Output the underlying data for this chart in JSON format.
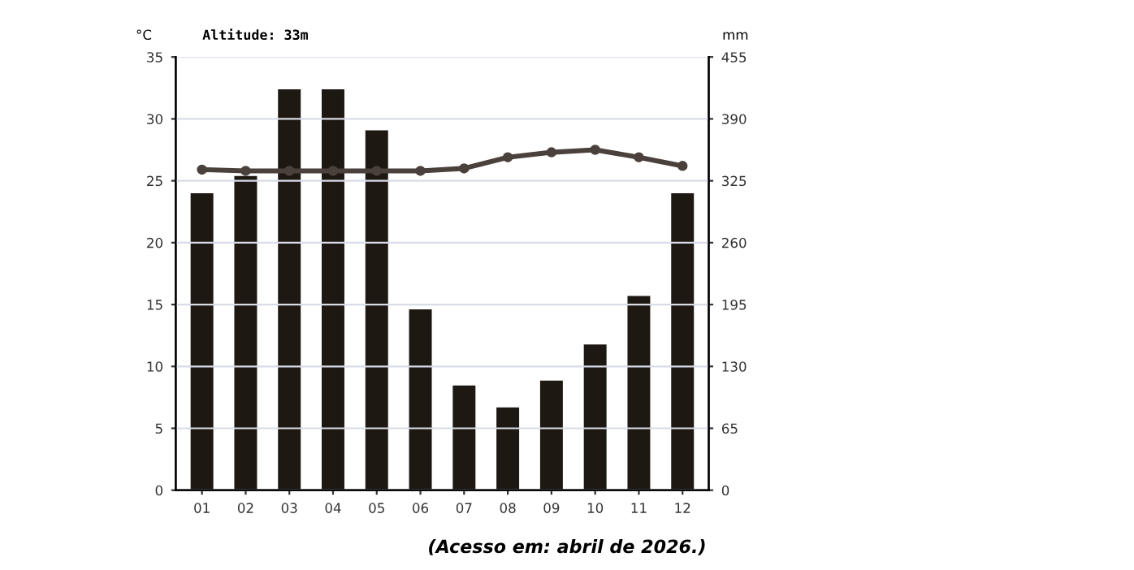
{
  "chart_data": {
    "type": "bar",
    "categories": [
      "01",
      "02",
      "03",
      "04",
      "05",
      "06",
      "07",
      "08",
      "09",
      "10",
      "11",
      "12"
    ],
    "series": [
      {
        "axis": "y2",
        "color": "#1e1812",
        "values": [
          312,
          330,
          421,
          421,
          378,
          190,
          110,
          87,
          115,
          153,
          204,
          312
        ]
      },
      {
        "type": "line",
        "axis": "y",
        "color": "#4a413c",
        "marker": "circle",
        "line_style": "solid",
        "values": [
          25.9,
          25.8,
          25.8,
          25.8,
          25.8,
          25.8,
          26.0,
          26.9,
          27.3,
          27.5,
          26.9,
          26.2
        ]
      }
    ],
    "ylabel": "°C",
    "y2label": "mm",
    "ylim": [
      0,
      35
    ],
    "yticks": [
      0,
      5,
      10,
      15,
      20,
      25,
      30,
      35
    ],
    "y2lim": [
      0,
      455
    ],
    "y2ticks": [
      0,
      65,
      130,
      195,
      260,
      325,
      390,
      455
    ],
    "grid": "y",
    "legend": false,
    "annotations": [
      "Altitude: 33m",
      "(Acesso em: abril de 2026.)"
    ]
  }
}
